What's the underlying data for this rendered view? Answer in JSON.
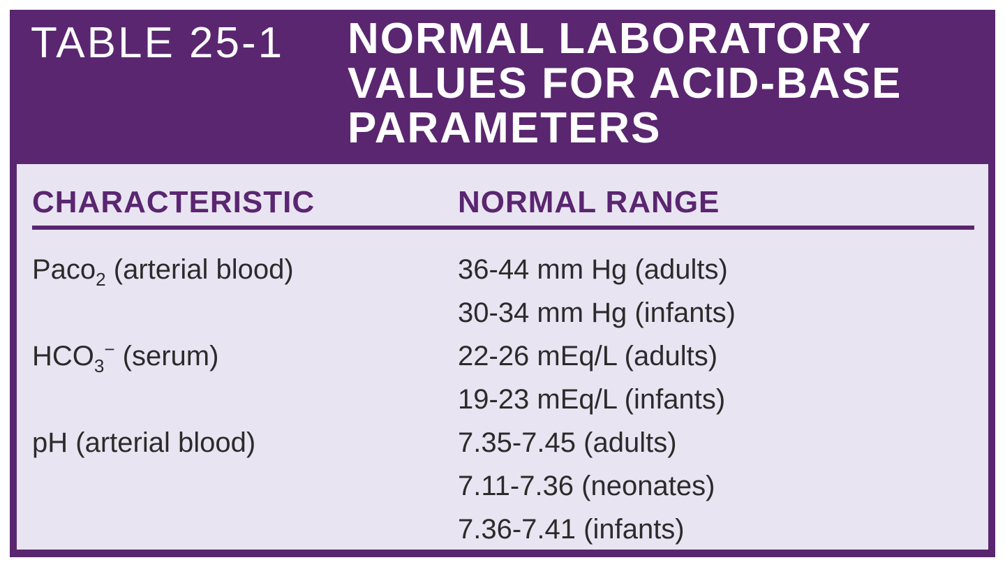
{
  "header": {
    "table_number": "TABLE 25-1",
    "title_lines": [
      "NORMAL LABORATORY",
      "VALUES FOR ACID-BASE",
      "PARAMETERS"
    ]
  },
  "columns": {
    "characteristic": "CHARACTERISTIC",
    "normal_range": "NORMAL RANGE"
  },
  "rows": [
    {
      "characteristic": {
        "base": "Paco",
        "sub": "2",
        "sup": "",
        "rest": " (arterial blood)"
      },
      "ranges": [
        "36-44 mm Hg (adults)",
        "30-34 mm Hg (infants)"
      ]
    },
    {
      "characteristic": {
        "base": "HCO",
        "sub": "3",
        "sup": "−",
        "rest": " (serum)"
      },
      "ranges": [
        "22-26 mEq/L (adults)",
        "19-23 mEq/L (infants)"
      ]
    },
    {
      "characteristic": {
        "base": "pH",
        "sub": "",
        "sup": "",
        "rest": " (arterial blood)"
      },
      "ranges": [
        "7.35-7.45 (adults)",
        "7.11-7.36 (neonates)",
        "7.36-7.41 (infants)"
      ]
    }
  ],
  "colors": {
    "header_purple": "#5a2670",
    "body_lavender": "#e9e4f1",
    "text": "#2b2b2b"
  }
}
